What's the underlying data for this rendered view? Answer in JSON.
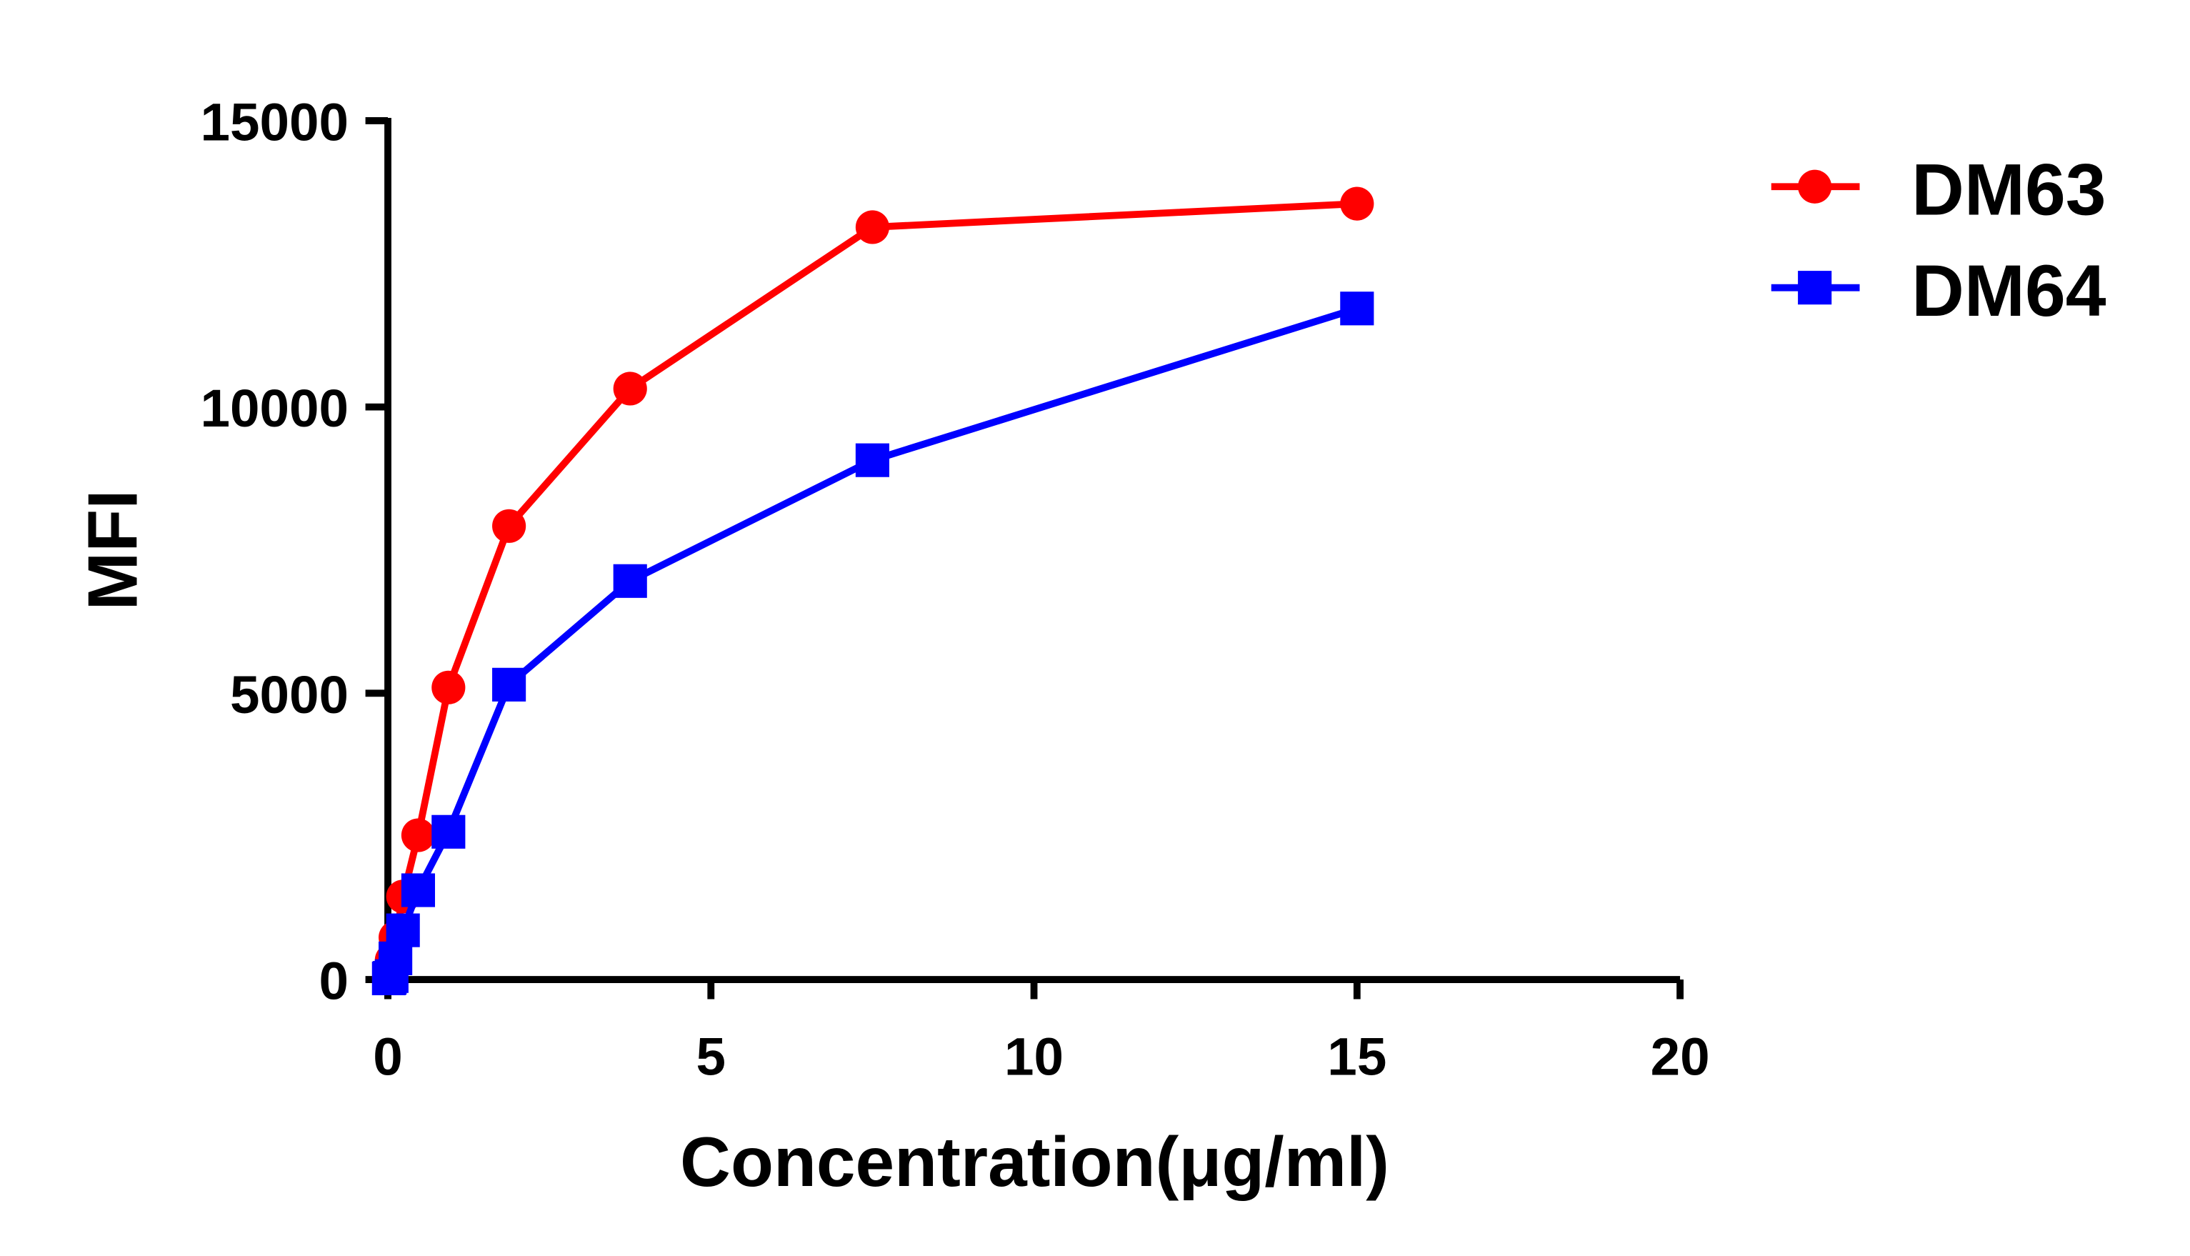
{
  "chart_data": {
    "type": "line",
    "title": "",
    "xlabel": "Concentration(μg/ml)",
    "ylabel": "MFI",
    "xlim": [
      0,
      20
    ],
    "ylim": [
      0,
      15000
    ],
    "xticks": [
      0,
      5,
      10,
      15,
      20
    ],
    "yticks": [
      0,
      5000,
      10000,
      15000
    ],
    "grid": false,
    "legend_position": "top-right",
    "series": [
      {
        "name": "DM63",
        "color": "#ff0000",
        "marker": "circle",
        "x": [
          0.0146,
          0.0293,
          0.0586,
          0.117,
          0.234,
          0.469,
          0.9375,
          1.875,
          3.75,
          7.5,
          15
        ],
        "y": [
          30,
          60,
          340,
          735,
          1450,
          2520,
          5100,
          7920,
          10320,
          13140,
          13550
        ]
      },
      {
        "name": "DM64",
        "color": "#0000ff",
        "marker": "square",
        "x": [
          0.0146,
          0.0293,
          0.0586,
          0.117,
          0.234,
          0.469,
          0.9375,
          1.875,
          3.75,
          7.5,
          15
        ],
        "y": [
          20,
          30,
          60,
          370,
          860,
          1560,
          2580,
          5150,
          6960,
          9070,
          11720
        ]
      }
    ]
  }
}
